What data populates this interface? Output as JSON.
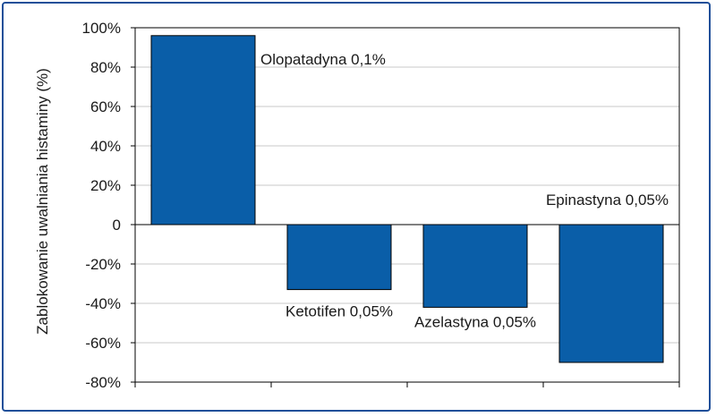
{
  "chart_data": {
    "type": "bar",
    "categories": [
      "Olopatadyna 0,1%",
      "Ketotifen 0,05%",
      "Azelastyna 0,05%",
      "Epinastyna 0,05%"
    ],
    "values": [
      96,
      -33,
      -42,
      -70
    ],
    "ylabel": "Zablokowanie uwalniania histaminy (%)",
    "xlabel": "",
    "ylim": [
      -80,
      100
    ],
    "yticks": [
      100,
      80,
      60,
      40,
      20,
      0,
      -20,
      -40,
      -60,
      -80
    ],
    "ytick_labels": [
      "100%",
      "80%",
      "60%",
      "40%",
      "20%",
      "0",
      "-20%",
      "-40%",
      "-60%",
      "-80%"
    ],
    "bar_color": "#0a5ea8",
    "grid": true,
    "grid_color": "#c8c8c8",
    "legend": false
  }
}
